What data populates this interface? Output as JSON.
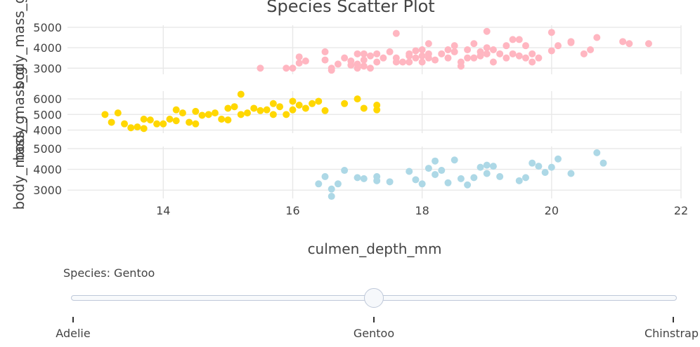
{
  "chart_data": {
    "type": "scatter",
    "title": "Species Scatter Plot",
    "xlabel": "culmen_depth_mm",
    "ylabel": "body_mass_g",
    "xlim": [
      12.9,
      22
    ],
    "xticks": [
      14,
      16,
      18,
      20,
      22
    ],
    "grid": true,
    "panels": [
      {
        "color": "#ffb6c1",
        "ylim": [
          2700,
          5100
        ],
        "yticks": [
          3000,
          4000,
          5000
        ],
        "points": [
          [
            15.5,
            3000
          ],
          [
            15.9,
            3000
          ],
          [
            16.0,
            3000
          ],
          [
            16.1,
            3250
          ],
          [
            16.1,
            3550
          ],
          [
            16.2,
            3350
          ],
          [
            16.5,
            3800
          ],
          [
            16.5,
            3400
          ],
          [
            16.6,
            3000
          ],
          [
            16.6,
            2900
          ],
          [
            16.7,
            3200
          ],
          [
            16.8,
            3500
          ],
          [
            16.9,
            3150
          ],
          [
            16.9,
            3350
          ],
          [
            17.0,
            3200
          ],
          [
            17.0,
            3700
          ],
          [
            17.0,
            3000
          ],
          [
            17.1,
            3400
          ],
          [
            17.1,
            3100
          ],
          [
            17.1,
            3700
          ],
          [
            17.2,
            3600
          ],
          [
            17.2,
            3000
          ],
          [
            17.3,
            3300
          ],
          [
            17.3,
            3700
          ],
          [
            17.4,
            3500
          ],
          [
            17.5,
            3800
          ],
          [
            17.6,
            3300
          ],
          [
            17.6,
            3500
          ],
          [
            17.6,
            4700
          ],
          [
            17.7,
            3300
          ],
          [
            17.8,
            3600
          ],
          [
            17.8,
            3300
          ],
          [
            17.8,
            3700
          ],
          [
            17.9,
            3500
          ],
          [
            17.9,
            3850
          ],
          [
            18.0,
            3600
          ],
          [
            18.0,
            3900
          ],
          [
            18.0,
            3300
          ],
          [
            18.1,
            3700
          ],
          [
            18.1,
            3500
          ],
          [
            18.1,
            4200
          ],
          [
            18.2,
            3400
          ],
          [
            18.3,
            3700
          ],
          [
            18.4,
            3500
          ],
          [
            18.4,
            3900
          ],
          [
            18.5,
            4100
          ],
          [
            18.5,
            3800
          ],
          [
            18.6,
            3300
          ],
          [
            18.6,
            3100
          ],
          [
            18.7,
            3500
          ],
          [
            18.7,
            3900
          ],
          [
            18.8,
            3500
          ],
          [
            18.8,
            4200
          ],
          [
            18.9,
            3600
          ],
          [
            18.9,
            3800
          ],
          [
            19.0,
            3700
          ],
          [
            19.0,
            4000
          ],
          [
            19.0,
            4800
          ],
          [
            19.1,
            3900
          ],
          [
            19.1,
            3300
          ],
          [
            19.2,
            3700
          ],
          [
            19.3,
            3500
          ],
          [
            19.3,
            4100
          ],
          [
            19.4,
            3700
          ],
          [
            19.4,
            4400
          ],
          [
            19.5,
            3600
          ],
          [
            19.5,
            4400
          ],
          [
            19.6,
            3500
          ],
          [
            19.6,
            4100
          ],
          [
            19.7,
            3300
          ],
          [
            19.7,
            3700
          ],
          [
            19.8,
            3500
          ],
          [
            20.0,
            3850
          ],
          [
            20.0,
            4750
          ],
          [
            20.1,
            4100
          ],
          [
            20.3,
            4300
          ],
          [
            20.3,
            4250
          ],
          [
            20.5,
            3700
          ],
          [
            20.6,
            3900
          ],
          [
            20.7,
            4500
          ],
          [
            21.1,
            4300
          ],
          [
            21.2,
            4200
          ],
          [
            21.5,
            4200
          ]
        ]
      },
      {
        "color": "#ffd700",
        "ylim": [
          3800,
          6500
        ],
        "yticks": [
          4000,
          5000,
          6000
        ],
        "points": [
          [
            13.1,
            5000
          ],
          [
            13.2,
            4500
          ],
          [
            13.3,
            5100
          ],
          [
            13.4,
            4400
          ],
          [
            13.5,
            4150
          ],
          [
            13.6,
            4200
          ],
          [
            13.7,
            4100
          ],
          [
            13.7,
            4700
          ],
          [
            13.8,
            4650
          ],
          [
            13.9,
            4400
          ],
          [
            14.0,
            4400
          ],
          [
            14.1,
            4700
          ],
          [
            14.2,
            4600
          ],
          [
            14.2,
            5300
          ],
          [
            14.3,
            5100
          ],
          [
            14.4,
            4500
          ],
          [
            14.5,
            5200
          ],
          [
            14.5,
            4400
          ],
          [
            14.6,
            4950
          ],
          [
            14.7,
            5000
          ],
          [
            14.8,
            5100
          ],
          [
            14.9,
            4700
          ],
          [
            15.0,
            5400
          ],
          [
            15.0,
            4650
          ],
          [
            15.1,
            5500
          ],
          [
            15.2,
            6300
          ],
          [
            15.2,
            5000
          ],
          [
            15.3,
            5100
          ],
          [
            15.4,
            5400
          ],
          [
            15.5,
            5250
          ],
          [
            15.6,
            5300
          ],
          [
            15.7,
            5700
          ],
          [
            15.7,
            5000
          ],
          [
            15.8,
            5500
          ],
          [
            15.9,
            5000
          ],
          [
            16.0,
            5300
          ],
          [
            16.0,
            5850
          ],
          [
            16.1,
            5600
          ],
          [
            16.2,
            5400
          ],
          [
            16.3,
            5700
          ],
          [
            16.4,
            5850
          ],
          [
            16.5,
            5250
          ],
          [
            16.8,
            5700
          ],
          [
            17.0,
            6000
          ],
          [
            17.1,
            5400
          ],
          [
            17.3,
            5600
          ],
          [
            17.3,
            5300
          ]
        ]
      },
      {
        "color": "#add8e6",
        "ylim": [
          2600,
          5100
        ],
        "yticks": [
          3000,
          4000,
          5000
        ],
        "points": [
          [
            16.4,
            3300
          ],
          [
            16.5,
            3650
          ],
          [
            16.6,
            2700
          ],
          [
            16.6,
            3050
          ],
          [
            16.7,
            3300
          ],
          [
            16.8,
            3950
          ],
          [
            17.0,
            3600
          ],
          [
            17.1,
            3550
          ],
          [
            17.3,
            3650
          ],
          [
            17.3,
            3450
          ],
          [
            17.5,
            3400
          ],
          [
            17.8,
            3900
          ],
          [
            17.9,
            3500
          ],
          [
            18.0,
            3300
          ],
          [
            18.1,
            4050
          ],
          [
            18.2,
            3750
          ],
          [
            18.2,
            4400
          ],
          [
            18.3,
            3950
          ],
          [
            18.4,
            3350
          ],
          [
            18.5,
            4450
          ],
          [
            18.6,
            3550
          ],
          [
            18.7,
            3250
          ],
          [
            18.8,
            3600
          ],
          [
            18.9,
            4100
          ],
          [
            19.0,
            3800
          ],
          [
            19.0,
            4200
          ],
          [
            19.1,
            4150
          ],
          [
            19.2,
            3650
          ],
          [
            19.5,
            3450
          ],
          [
            19.6,
            3600
          ],
          [
            19.7,
            4300
          ],
          [
            19.8,
            4150
          ],
          [
            19.9,
            3850
          ],
          [
            20.0,
            4100
          ],
          [
            20.1,
            4500
          ],
          [
            20.3,
            3800
          ],
          [
            20.7,
            4800
          ],
          [
            20.8,
            4300
          ]
        ]
      }
    ]
  },
  "slider": {
    "current_label": "Species: Gentoo",
    "current_value": "Gentoo",
    "steps": [
      "Adelie",
      "Gentoo",
      "Chinstrap"
    ]
  }
}
